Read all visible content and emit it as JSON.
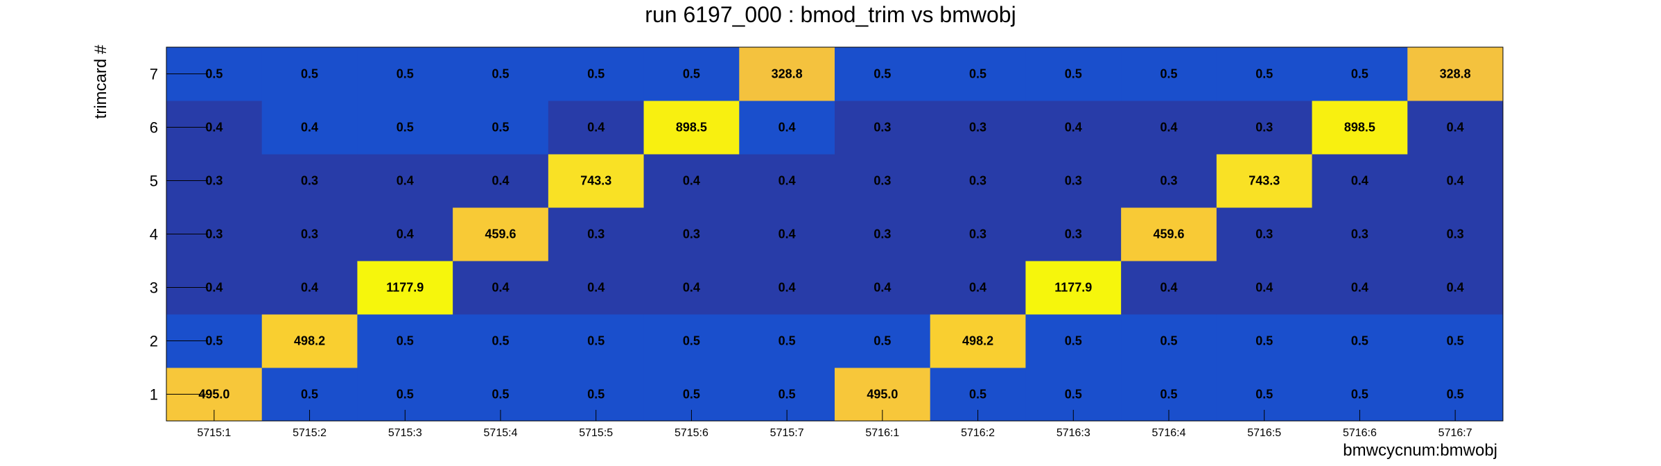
{
  "chart_data": {
    "type": "heatmap",
    "title": "run 6197_000 : bmod_trim vs bmwobj",
    "xlabel": "bmwcycnum:bmwobj",
    "ylabel": "trimcard #",
    "x_categories": [
      "5715:1",
      "5715:2",
      "5715:3",
      "5715:4",
      "5715:5",
      "5715:6",
      "5715:7",
      "5716:1",
      "5716:2",
      "5716:3",
      "5716:4",
      "5716:5",
      "5716:6",
      "5716:7"
    ],
    "y_categories": [
      "1",
      "2",
      "3",
      "4",
      "5",
      "6",
      "7"
    ],
    "values": [
      [
        495.0,
        0.5,
        0.5,
        0.5,
        0.5,
        0.5,
        0.5,
        495.0,
        0.5,
        0.5,
        0.5,
        0.5,
        0.5,
        0.5
      ],
      [
        0.5,
        498.2,
        0.5,
        0.5,
        0.5,
        0.5,
        0.5,
        0.5,
        498.2,
        0.5,
        0.5,
        0.5,
        0.5,
        0.5
      ],
      [
        0.4,
        0.4,
        1177.9,
        0.4,
        0.4,
        0.4,
        0.4,
        0.4,
        0.4,
        1177.9,
        0.4,
        0.4,
        0.4,
        0.4
      ],
      [
        0.3,
        0.3,
        0.4,
        459.6,
        0.3,
        0.3,
        0.4,
        0.3,
        0.3,
        0.3,
        459.6,
        0.3,
        0.3,
        0.3
      ],
      [
        0.3,
        0.3,
        0.4,
        0.4,
        743.3,
        0.4,
        0.4,
        0.3,
        0.3,
        0.3,
        0.3,
        743.3,
        0.4,
        0.4
      ],
      [
        0.4,
        0.4,
        0.5,
        0.5,
        0.4,
        898.5,
        0.4,
        0.3,
        0.3,
        0.4,
        0.4,
        0.3,
        898.5,
        0.4
      ],
      [
        0.5,
        0.5,
        0.5,
        0.5,
        0.5,
        0.5,
        328.8,
        0.5,
        0.5,
        0.5,
        0.5,
        0.5,
        0.5,
        328.8
      ]
    ],
    "cell_colors": [
      [
        "#f7c73a",
        "#1a4fcc",
        "#1a4fcc",
        "#1a4fcc",
        "#1a4fcc",
        "#1a4fcc",
        "#1a4fcc",
        "#f7c73a",
        "#1a4fcc",
        "#1a4fcc",
        "#1a4fcc",
        "#1a4fcc",
        "#1a4fcc",
        "#1a4fcc"
      ],
      [
        "#1a4fcc",
        "#f9cf30",
        "#1a4fcc",
        "#1a4fcc",
        "#1a4fcc",
        "#1a4fcc",
        "#1a4fcc",
        "#1a4fcc",
        "#f9cf30",
        "#1a4fcc",
        "#1a4fcc",
        "#1a4fcc",
        "#1a4fcc",
        "#1a4fcc"
      ],
      [
        "#283ca8",
        "#283ca8",
        "#f6f60c",
        "#283ca8",
        "#283ca8",
        "#283ca8",
        "#283ca8",
        "#283ca8",
        "#283ca8",
        "#f6f60c",
        "#283ca8",
        "#283ca8",
        "#283ca8",
        "#283ca8"
      ],
      [
        "#283ca8",
        "#283ca8",
        "#283ca8",
        "#f8ca36",
        "#283ca8",
        "#283ca8",
        "#283ca8",
        "#283ca8",
        "#283ca8",
        "#283ca8",
        "#f8ca36",
        "#283ca8",
        "#283ca8",
        "#283ca8"
      ],
      [
        "#283ca8",
        "#283ca8",
        "#283ca8",
        "#283ca8",
        "#f9e125",
        "#283ca8",
        "#283ca8",
        "#283ca8",
        "#283ca8",
        "#283ca8",
        "#283ca8",
        "#f9e125",
        "#283ca8",
        "#283ca8"
      ],
      [
        "#283ca8",
        "#1a4fcc",
        "#1a4fcc",
        "#1a4fcc",
        "#283ca8",
        "#f8f010",
        "#1a4fcc",
        "#283ca8",
        "#283ca8",
        "#283ca8",
        "#283ca8",
        "#283ca8",
        "#f8f010",
        "#283ca8"
      ],
      [
        "#1a4fcc",
        "#1a4fcc",
        "#1a4fcc",
        "#1a4fcc",
        "#1a4fcc",
        "#1a4fcc",
        "#f4c23e",
        "#1a4fcc",
        "#1a4fcc",
        "#1a4fcc",
        "#1a4fcc",
        "#1a4fcc",
        "#1a4fcc",
        "#f4c23e"
      ]
    ],
    "grid": false,
    "legend": "none"
  }
}
